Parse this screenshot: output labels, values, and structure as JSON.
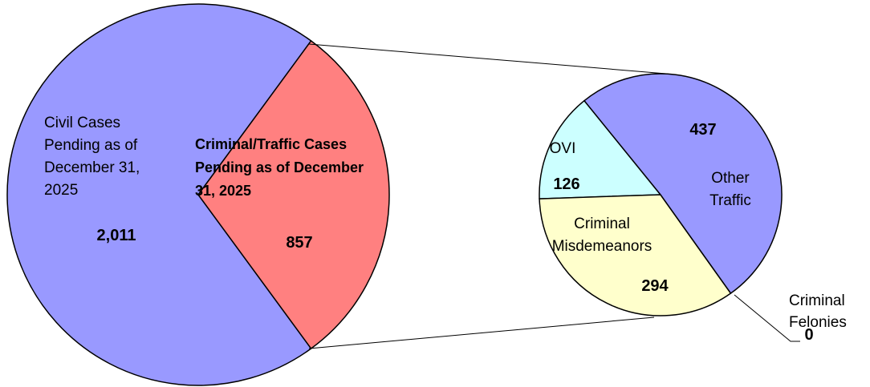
{
  "chart_data": [
    {
      "type": "pie",
      "categories": [
        "Criminal/Traffic Cases Pending as of December 31, 2025",
        "Civil Cases Pending as of December 31, 2025"
      ],
      "values": [
        857,
        2011
      ],
      "value_labels": [
        "857",
        "2,011"
      ],
      "colors": [
        "#ff8080",
        "#9999ff"
      ]
    },
    {
      "type": "pie",
      "categories": [
        "Other Traffic",
        "Criminal Felonies",
        "Criminal Misdemeanors",
        "OVI"
      ],
      "values": [
        437,
        0,
        294,
        126
      ],
      "value_labels": [
        "437",
        "0",
        "294",
        "126"
      ],
      "colors": [
        "#9999ff",
        "#ffffcc",
        "#ffffcc",
        "#ccffff"
      ]
    }
  ]
}
